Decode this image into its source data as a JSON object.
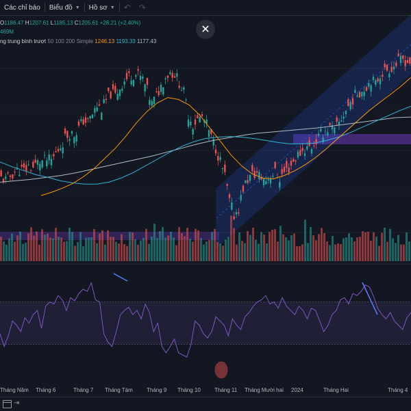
{
  "toolbar": {
    "indicators_label": "Các chỉ báo",
    "chart_label": "Biểu đồ",
    "profile_label": "Hồ sơ"
  },
  "legend": {
    "ohlc": {
      "o_label": "O",
      "o": "1186.47",
      "h_label": "H",
      "h": "1207.61",
      "l_label": "L",
      "l": "1185.13",
      "c_label": "C",
      "c": "1205.61",
      "change": "+28.21 (+2.40%)"
    },
    "volume": "469M",
    "ma_name": "ng trung bình trượt",
    "ma_params": "50 100 200 Simple",
    "ma50": "1246.13",
    "ma100": "1193.33",
    "ma200": "1177.43"
  },
  "xaxis_labels": [
    "Tháng Năm",
    "Tháng 6",
    "Tháng 7",
    "Tháng Tám",
    "Tháng 9",
    "Tháng 10",
    "Tháng 11",
    "Tháng Mười hai",
    "2024",
    "Tháng Hai",
    "Tháng 4"
  ],
  "colors": {
    "up": "#26a69a",
    "down": "#ef5350",
    "ma50": "#ff9800",
    "ma100": "#2fb5d4",
    "ma200": "#b0bec5",
    "rsi": "#7e57c2",
    "channel": "#2962ff",
    "zone": "#673ab7"
  },
  "chart_data": {
    "type": "candlestick",
    "price_series": [
      1085,
      1082,
      1088,
      1095,
      1098,
      1096,
      1103,
      1101,
      1108,
      1110,
      1112,
      1111,
      1122,
      1133,
      1145,
      1152,
      1150,
      1160,
      1171,
      1168,
      1180,
      1192,
      1188,
      1200,
      1212,
      1208,
      1220,
      1230,
      1236,
      1240,
      1238,
      1232,
      1215,
      1195,
      1208,
      1222,
      1236,
      1243,
      1240,
      1228,
      1212,
      1180,
      1165,
      1172,
      1176,
      1164,
      1145,
      1130,
      1110,
      1088,
      1050,
      1030,
      1040,
      1070,
      1083,
      1090,
      1092,
      1086,
      1082,
      1090,
      1093,
      1085,
      1094,
      1100,
      1110,
      1120,
      1126,
      1130,
      1132,
      1140,
      1150,
      1156,
      1160,
      1155,
      1167,
      1180,
      1192,
      1203,
      1212,
      1215,
      1222,
      1232,
      1225,
      1240,
      1245,
      1248,
      1252,
      1258,
      1262,
      1258
    ],
    "ma50": [
      1060,
      1065,
      1071,
      1078,
      1088,
      1100,
      1115,
      1130,
      1148,
      1168,
      1185,
      1198,
      1206,
      1203,
      1195,
      1180,
      1160,
      1140,
      1120,
      1104,
      1092,
      1086,
      1085,
      1090,
      1097,
      1106,
      1117,
      1130,
      1144,
      1158,
      1172,
      1186,
      1198,
      1210,
      1222,
      1236
    ],
    "ma100": [
      1110,
      1103,
      1097,
      1091,
      1087,
      1082,
      1079,
      1077,
      1077,
      1080,
      1086,
      1094,
      1104,
      1114,
      1124,
      1133,
      1140,
      1145,
      1147,
      1148,
      1147,
      1145,
      1142,
      1139,
      1137,
      1137,
      1138,
      1142,
      1147,
      1154,
      1162,
      1170,
      1178,
      1186,
      1193
    ],
    "ma200": [
      1080,
      1082,
      1084,
      1087,
      1090,
      1094,
      1099,
      1104,
      1109,
      1114,
      1119,
      1125,
      1131,
      1137,
      1142,
      1146,
      1150,
      1153,
      1155,
      1157,
      1159,
      1161,
      1164,
      1167,
      1170,
      1173,
      1176,
      1177
    ],
    "rsi": [
      40,
      28,
      38,
      52,
      48,
      42,
      55,
      50,
      58,
      62,
      45,
      66,
      70,
      68,
      76,
      72,
      62,
      74,
      71,
      78,
      82,
      80,
      88,
      72,
      70,
      40,
      32,
      28,
      42,
      58,
      62,
      65,
      58,
      62,
      54,
      68,
      60,
      42,
      50,
      28,
      22,
      28,
      35,
      22,
      20,
      18,
      30,
      52,
      48,
      40,
      36,
      42,
      56,
      52,
      48,
      38,
      54,
      48,
      44,
      56,
      60,
      66,
      70,
      72,
      76,
      68,
      70,
      64,
      74,
      66,
      62,
      58,
      66,
      62,
      54,
      64,
      62,
      52,
      42,
      48,
      58,
      62,
      72,
      74,
      68,
      78,
      76,
      80,
      86,
      84,
      75,
      64,
      58,
      54,
      60,
      52,
      48,
      44,
      55,
      60
    ],
    "rsi_levels": [
      70,
      30
    ]
  }
}
